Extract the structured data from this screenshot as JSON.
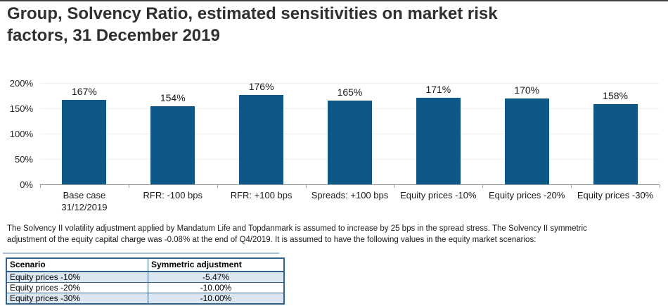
{
  "page": {
    "title_lines": [
      "Group, Solvency Ratio, estimated sensitivities on market risk",
      "factors, 31 December 2019"
    ]
  },
  "chart_data": {
    "type": "bar",
    "title": "Group, Solvency Ratio, estimated sensitivities on market risk factors, 31 December 2019",
    "categories": [
      "Base case\n31/12/2019",
      "RFR: -100 bps",
      "RFR: +100 bps",
      "Spreads: +100 bps",
      "Equity prices -10%",
      "Equity prices -20%",
      "Equity prices -30%"
    ],
    "values": [
      167,
      154,
      176,
      165,
      171,
      170,
      158
    ],
    "value_labels": [
      "167%",
      "154%",
      "176%",
      "165%",
      "171%",
      "170%",
      "158%"
    ],
    "xlabel": "",
    "ylabel": "",
    "ylim": [
      0,
      200
    ],
    "ytick_labels": [
      "0%",
      "50%",
      "100%",
      "150%",
      "200%"
    ],
    "grid": true,
    "legend": null,
    "bar_color": "#0d5886"
  },
  "footnote_lines": [
    "The Solvency II volatility adjustment applied by Mandatum Life and Topdanmark is assumed to increase by 25 bps in the spread stress. The Solvency II symmetric",
    "adjustment of the equity capital charge was -0.08% at the end of Q4/2019. It is assumed to have the following values in the equity market scenarios:"
  ],
  "table": {
    "headers": [
      "Scenario",
      "Symmetric adjustment"
    ],
    "rows": [
      [
        "Equity prices -10%",
        "-5.47%"
      ],
      [
        "Equity prices -20%",
        "-10.00%"
      ],
      [
        "Equity prices -30%",
        "-10.00%"
      ]
    ]
  },
  "colors": {
    "bar": "#0d5886",
    "table_border": "#35628d",
    "table_row_alt": "#dce6f0",
    "gridline": "#efefef",
    "axis": "#9c9c9c"
  }
}
